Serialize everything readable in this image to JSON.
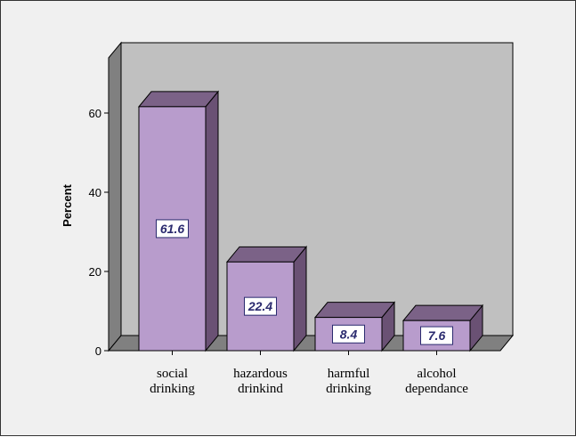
{
  "chart_data": {
    "type": "bar",
    "style": "3d",
    "categories": [
      [
        "social",
        "drinking"
      ],
      [
        "hazardous",
        "drinkind"
      ],
      [
        "harmful",
        "drinking"
      ],
      [
        "alcohol",
        "dependance"
      ]
    ],
    "values": [
      61.6,
      22.4,
      8.4,
      7.6
    ],
    "data_labels": [
      "61.6",
      "22.4",
      "8.4",
      "7.6"
    ],
    "ylabel": "Percent",
    "xlabel": "",
    "ylim": [
      0,
      60
    ],
    "yticks": [
      0,
      20,
      40,
      60
    ],
    "grid": false,
    "colors": {
      "bar_front": "#b89ccc",
      "bar_top": "#7b6287",
      "bar_side": "#6a5174",
      "wall": "#c0c0c0",
      "floor": "#808080",
      "frame_bg": "#f0f0f0"
    }
  }
}
